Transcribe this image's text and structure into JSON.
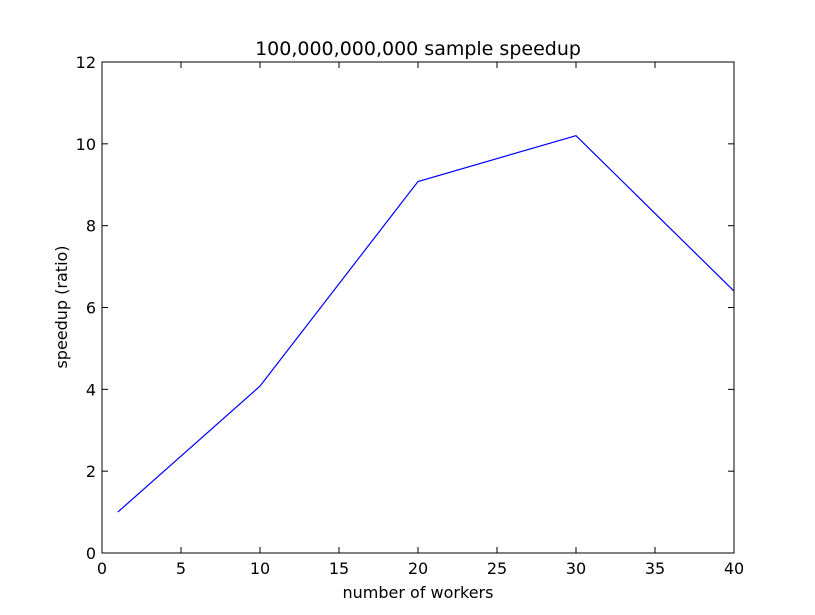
{
  "chart_data": {
    "type": "line",
    "title": "100,000,000,000 sample speedup",
    "xlabel": "number of workers",
    "ylabel": "speedup (ratio)",
    "xlim": [
      0,
      40
    ],
    "ylim": [
      0,
      12
    ],
    "xticks": [
      "0",
      "5",
      "10",
      "15",
      "20",
      "25",
      "30",
      "35",
      "40"
    ],
    "yticks": [
      "0",
      "2",
      "4",
      "6",
      "8",
      "10",
      "12"
    ],
    "grid": false,
    "series": [
      {
        "color": "#0000ff",
        "x": [
          1,
          10,
          20,
          30,
          40
        ],
        "y": [
          1.0,
          4.08,
          9.08,
          10.2,
          6.4
        ]
      }
    ]
  }
}
